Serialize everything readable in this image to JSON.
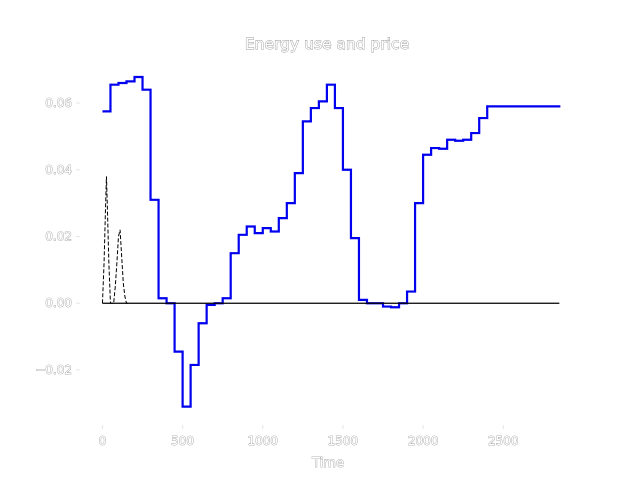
{
  "chart_data": {
    "type": "line",
    "title": "Energy use and price",
    "xlabel": "Time",
    "ylabel": "",
    "xlim": [
      -140,
      2960
    ],
    "ylim": [
      -0.0365,
      0.0735
    ],
    "x_ticks": [
      0,
      500,
      1000,
      1500,
      2000,
      2500
    ],
    "x_tick_labels": [
      "0",
      "500",
      "1000",
      "1500",
      "2000",
      "2500"
    ],
    "y_ticks": [
      -0.02,
      0.0,
      0.02,
      0.04,
      0.06
    ],
    "y_tick_labels": [
      "−0.02",
      "0.00",
      "0.02",
      "0.04",
      "0.06"
    ],
    "grid": false,
    "series": [
      {
        "style": "blue-step-line",
        "color": "#0000ee",
        "x": [
          0,
          50,
          100,
          150,
          200,
          250,
          300,
          350,
          400,
          450,
          500,
          550,
          600,
          650,
          700,
          750,
          800,
          850,
          900,
          950,
          1000,
          1050,
          1100,
          1150,
          1200,
          1250,
          1300,
          1350,
          1400,
          1450,
          1500,
          1550,
          1600,
          1650,
          1700,
          1750,
          1800,
          1850,
          1900,
          1950,
          2000,
          2050,
          2100,
          2150,
          2200,
          2250,
          2300,
          2350,
          2400,
          2450,
          2500,
          2550,
          2600,
          2650,
          2700,
          2750,
          2800,
          2850
        ],
        "y": [
          0.0575,
          0.0655,
          0.066,
          0.0665,
          0.0678,
          0.064,
          0.031,
          0.0015,
          0.0,
          -0.0145,
          -0.031,
          -0.0185,
          -0.006,
          -0.0005,
          0.0,
          0.0015,
          0.015,
          0.0205,
          0.023,
          0.021,
          0.0225,
          0.0215,
          0.0255,
          0.03,
          0.039,
          0.0545,
          0.0585,
          0.0605,
          0.0655,
          0.0585,
          0.04,
          0.0195,
          0.001,
          0.0,
          0.0,
          -0.001,
          -0.0012,
          0.0,
          0.0035,
          0.03,
          0.0445,
          0.0465,
          0.0463,
          0.049,
          0.0487,
          0.049,
          0.051,
          0.0555,
          0.059,
          0.059,
          0.059,
          0.059,
          0.059,
          0.059,
          0.059,
          0.059,
          0.059,
          0.059
        ]
      },
      {
        "style": "black-baseline",
        "color": "#000000",
        "x": [
          0,
          2850
        ],
        "y": [
          0.0,
          0.0
        ]
      },
      {
        "style": "black-dashed-spikes",
        "color": "#000000",
        "x": [
          0,
          10,
          20,
          25,
          30,
          40,
          50,
          60,
          70,
          80,
          90,
          100,
          110,
          120,
          130,
          140,
          150,
          160,
          170
        ],
        "y": [
          0.0,
          0.012,
          0.03,
          0.038,
          0.03,
          0.012,
          0.0,
          0.0,
          0.0,
          0.005,
          0.012,
          0.02,
          0.022,
          0.014,
          0.006,
          0.002,
          0.0,
          0.0,
          0.0
        ]
      }
    ]
  }
}
